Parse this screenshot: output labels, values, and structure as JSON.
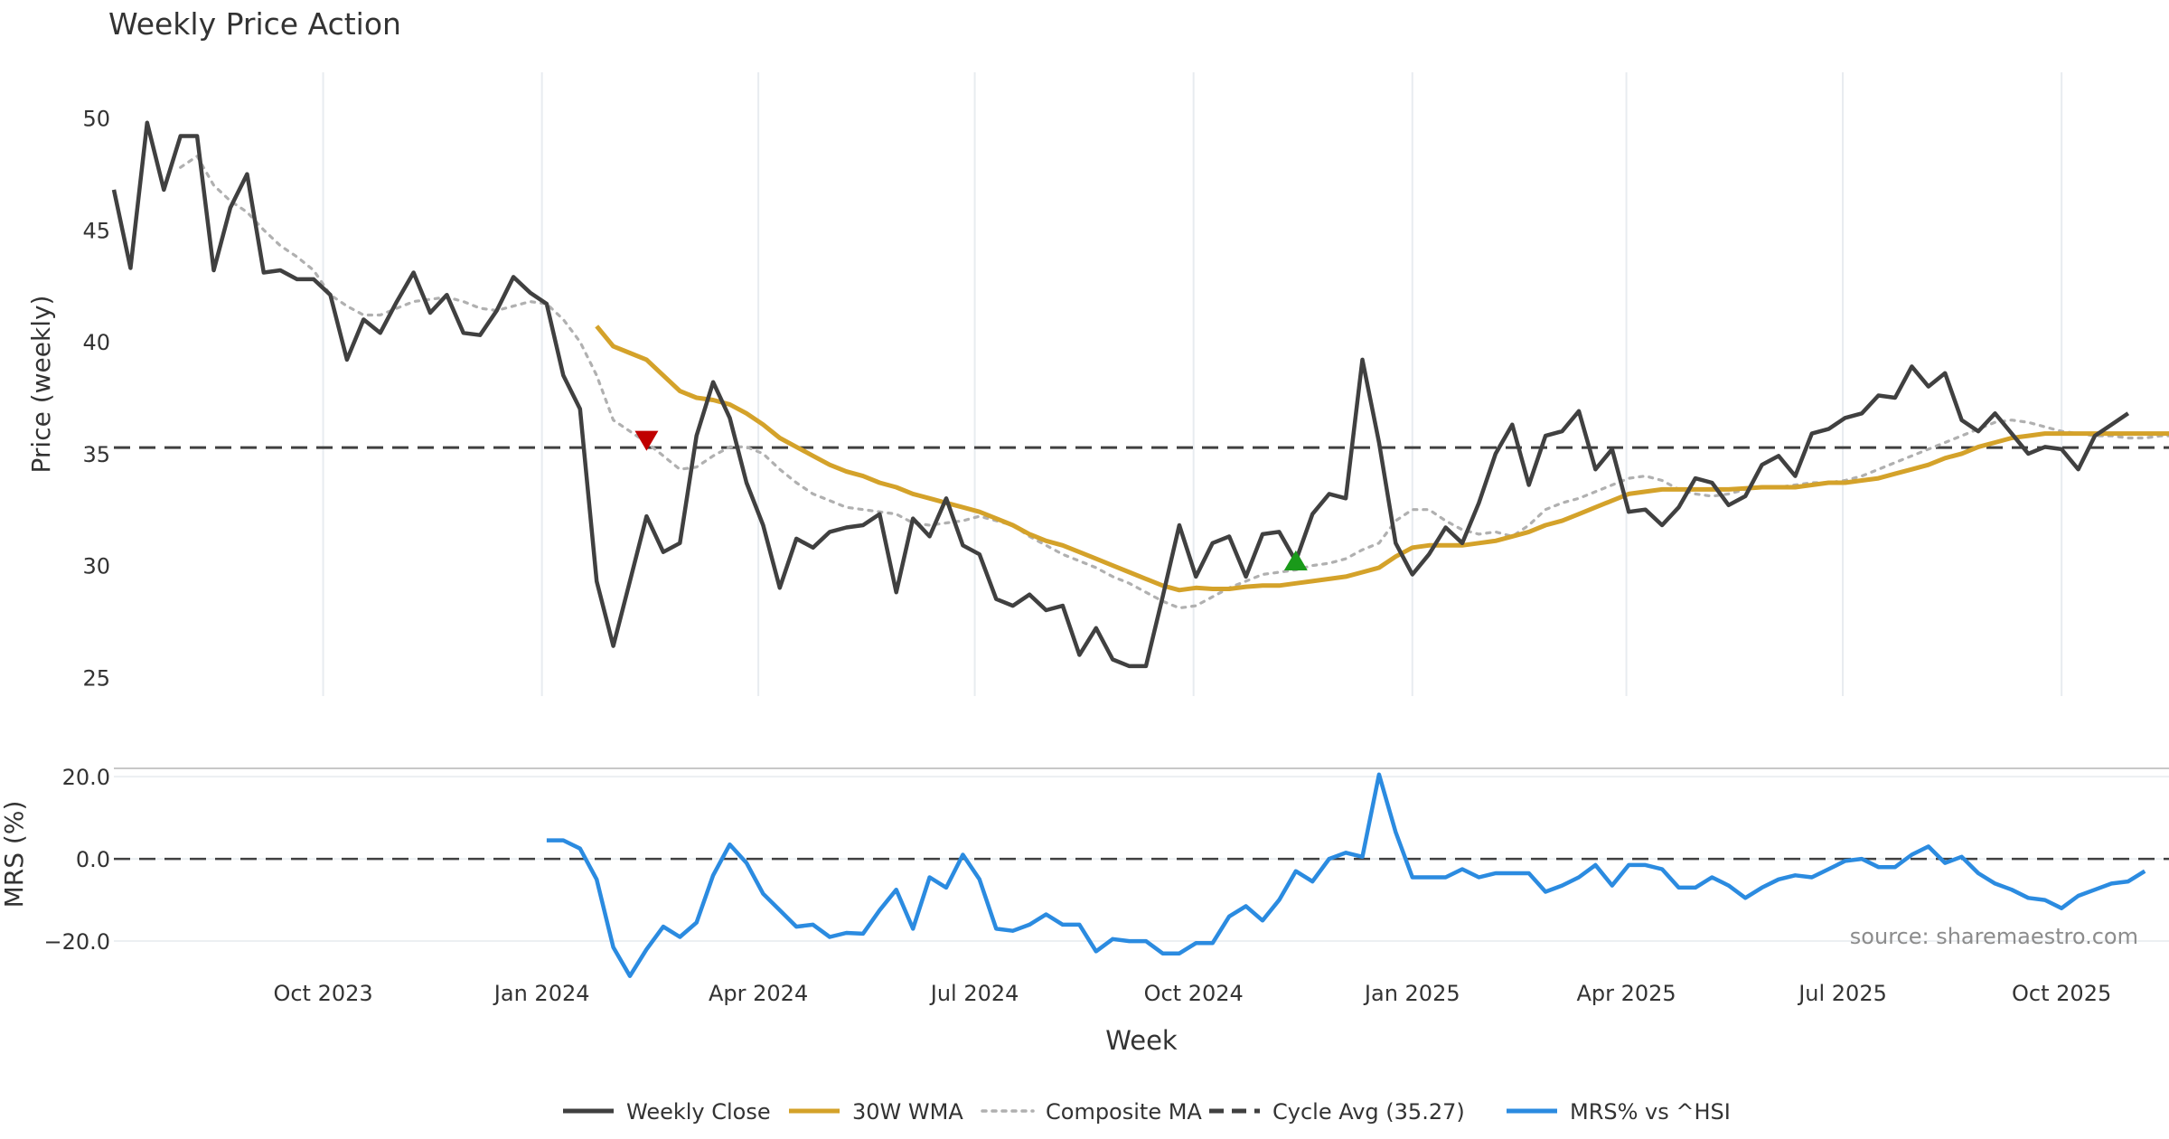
{
  "chart_data": {
    "type": "line",
    "title": "Weekly Price Action",
    "xlabel": "Week",
    "x_ticks": [
      "Oct 2023",
      "Jan 2024",
      "Apr 2024",
      "Jul 2024",
      "Oct 2024",
      "Jan 2025",
      "Apr 2025",
      "Jul 2025",
      "Oct 2025"
    ],
    "start_week": "2023-07-05",
    "price_panel": {
      "ylabel": "Price (weekly)",
      "ylim": [
        24,
        51
      ],
      "y_ticks": [
        25,
        30,
        35,
        40,
        45,
        50
      ],
      "grid": "vertical",
      "series": [
        {
          "name": "Weekly Close",
          "color": "#404040",
          "style": "solid",
          "start_index": 0,
          "values": [
            46.8,
            43.3,
            49.8,
            46.8,
            49.2,
            49.2,
            43.2,
            46.0,
            47.5,
            43.1,
            43.2,
            42.8,
            42.8,
            42.1,
            39.2,
            41.0,
            40.4,
            41.8,
            43.1,
            41.3,
            42.1,
            40.4,
            40.3,
            41.4,
            42.9,
            42.2,
            41.7,
            38.5,
            37.0,
            29.3,
            26.4,
            29.3,
            32.2,
            30.6,
            31.0,
            35.8,
            38.2,
            36.6,
            33.7,
            31.8,
            29.0,
            31.2,
            30.8,
            31.5,
            31.7,
            31.8,
            32.3,
            28.8,
            32.1,
            31.3,
            33.0,
            30.9,
            30.5,
            28.5,
            28.2,
            28.7,
            28.0,
            28.2,
            26.0,
            27.2,
            25.8,
            25.5,
            25.5,
            28.6,
            31.8,
            29.5,
            31.0,
            31.3,
            29.5,
            31.4,
            31.5,
            30.2,
            32.3,
            33.2,
            33.0,
            39.2,
            35.5,
            31.0,
            29.6,
            30.5,
            31.7,
            31.0,
            32.8,
            35.0,
            36.3,
            33.6,
            35.8,
            36.0,
            36.9,
            34.3,
            35.2,
            32.4,
            32.5,
            31.8,
            32.6,
            33.9,
            33.7,
            32.7,
            33.1,
            34.5,
            34.9,
            34.0,
            35.9,
            36.1,
            36.6,
            36.8,
            37.6,
            37.5,
            38.9,
            38.0,
            38.6,
            36.5,
            36.0,
            36.8,
            35.9,
            35.0,
            35.3,
            35.2,
            34.3,
            35.8,
            36.3,
            36.8
          ]
        },
        {
          "name": "30W WMA",
          "color": "#d4a22a",
          "style": "solid",
          "start_index": 29,
          "values": [
            40.7,
            39.8,
            39.5,
            39.2,
            38.5,
            37.8,
            37.5,
            37.4,
            37.2,
            36.8,
            36.3,
            35.7,
            35.3,
            34.9,
            34.5,
            34.2,
            34.0,
            33.7,
            33.5,
            33.2,
            33.0,
            32.8,
            32.6,
            32.4,
            32.1,
            31.8,
            31.4,
            31.1,
            30.9,
            30.6,
            30.3,
            30.0,
            29.7,
            29.4,
            29.1,
            28.9,
            29.0,
            28.95,
            28.95,
            29.05,
            29.1,
            29.1,
            29.2,
            29.3,
            29.4,
            29.5,
            29.7,
            29.9,
            30.4,
            30.8,
            30.9,
            30.9,
            30.9,
            31.0,
            31.1,
            31.3,
            31.5,
            31.8,
            32.0,
            32.3,
            32.6,
            32.9,
            33.2,
            33.3,
            33.4,
            33.4,
            33.4,
            33.4,
            33.4,
            33.45,
            33.5,
            33.5,
            33.5,
            33.6,
            33.7,
            33.7,
            33.8,
            33.9,
            34.1,
            34.3,
            34.5,
            34.8,
            35.0,
            35.3,
            35.5,
            35.7,
            35.8,
            35.9,
            35.9,
            35.9,
            35.9,
            35.9,
            35.9,
            35.9,
            35.9,
            35.9
          ]
        },
        {
          "name": "Composite MA",
          "color": "#b0b0b0",
          "style": "dotted",
          "start_index": 4,
          "values": [
            47.8,
            48.3,
            47.0,
            46.3,
            45.8,
            45.0,
            44.3,
            43.8,
            43.2,
            42.1,
            41.6,
            41.2,
            41.2,
            41.5,
            41.8,
            41.9,
            42.0,
            41.8,
            41.5,
            41.4,
            41.6,
            41.8,
            41.7,
            41.0,
            40.0,
            38.5,
            36.5,
            36.0,
            35.5,
            34.9,
            34.3,
            34.4,
            34.9,
            35.3,
            35.3,
            35.0,
            34.3,
            33.7,
            33.2,
            32.9,
            32.6,
            32.5,
            32.4,
            32.3,
            31.9,
            31.8,
            31.9,
            32.0,
            32.2,
            32.0,
            31.8,
            31.3,
            30.9,
            30.5,
            30.2,
            29.9,
            29.5,
            29.2,
            28.8,
            28.4,
            28.1,
            28.2,
            28.6,
            29.0,
            29.3,
            29.6,
            29.7,
            29.8,
            30.0,
            30.1,
            30.3,
            30.7,
            31.0,
            32.0,
            32.5,
            32.5,
            32.0,
            31.6,
            31.4,
            31.5,
            31.3,
            31.8,
            32.5,
            32.8,
            33.0,
            33.3,
            33.6,
            33.9,
            34.0,
            33.8,
            33.4,
            33.2,
            33.1,
            33.2,
            33.4,
            33.5,
            33.5,
            33.6,
            33.7,
            33.7,
            33.8,
            34.0,
            34.3,
            34.6,
            34.9,
            35.2,
            35.5,
            35.8,
            36.1,
            36.4,
            36.5,
            36.4,
            36.2,
            36.0,
            35.9,
            35.8,
            35.8,
            35.7,
            35.7,
            35.8,
            35.8
          ]
        }
      ],
      "reference_line": {
        "name": "Cycle Avg (35.27)",
        "value": 35.27,
        "color": "#404040",
        "style": "dashed"
      },
      "markers": [
        {
          "type": "sell",
          "shape": "down-triangle",
          "index": 32,
          "value": 35.6,
          "color": "#c00000"
        },
        {
          "type": "buy",
          "shape": "up-triangle",
          "index": 71,
          "value": 30.2,
          "color": "#1a9a1a"
        }
      ]
    },
    "mrs_panel": {
      "ylabel": "MRS (%)",
      "ylim": [
        -29,
        22
      ],
      "y_ticks": [
        20.0,
        0.0,
        -20.0
      ],
      "y_tick_labels": [
        "20.0",
        "0.0",
        "−20.0"
      ],
      "zero_line": {
        "value": 0,
        "color": "#404040",
        "style": "dashed"
      },
      "series": [
        {
          "name": "MRS% vs ^HSI",
          "color": "#2b8be0",
          "style": "solid",
          "start_index": 26,
          "values": [
            4.5,
            4.5,
            2.5,
            -5.0,
            -21.5,
            -28.5,
            -22.0,
            -16.5,
            -19.0,
            -15.5,
            -4.0,
            3.5,
            -1.0,
            -8.5,
            -12.5,
            -16.5,
            -16.0,
            -19.0,
            -18.0,
            -18.2,
            -12.5,
            -7.5,
            -17.0,
            -4.5,
            -7.0,
            1.0,
            -5.0,
            -17.0,
            -17.5,
            -16.0,
            -13.5,
            -16.0,
            -16.0,
            -22.5,
            -19.5,
            -20.0,
            -20.0,
            -23.0,
            -23.0,
            -20.5,
            -20.5,
            -14.0,
            -11.5,
            -15.0,
            -10.0,
            -3.0,
            -5.5,
            0.0,
            1.5,
            0.5,
            20.5,
            6.5,
            -4.5,
            -4.5,
            -4.5,
            -2.5,
            -4.5,
            -3.5,
            -3.5,
            -3.5,
            -8.0,
            -6.5,
            -4.5,
            -1.5,
            -6.5,
            -1.5,
            -1.5,
            -2.5,
            -7.0,
            -7.0,
            -4.5,
            -6.5,
            -9.5,
            -7.0,
            -5.0,
            -4.0,
            -4.5,
            -2.5,
            -0.5,
            0.0,
            -2.0,
            -2.0,
            1.0,
            3.0,
            -1.0,
            0.5,
            -3.5,
            -6.0,
            -7.5,
            -9.5,
            -10.0,
            -12.0,
            -9.0,
            -7.5,
            -6.0,
            -5.5,
            -3.0
          ]
        }
      ]
    },
    "legend": {
      "placement": "bottom-center",
      "entries": [
        "Weekly Close",
        "30W WMA",
        "Composite MA",
        "Cycle Avg (35.27)",
        "MRS% vs ^HSI"
      ]
    },
    "annotation": "source: sharemaestro.com"
  }
}
